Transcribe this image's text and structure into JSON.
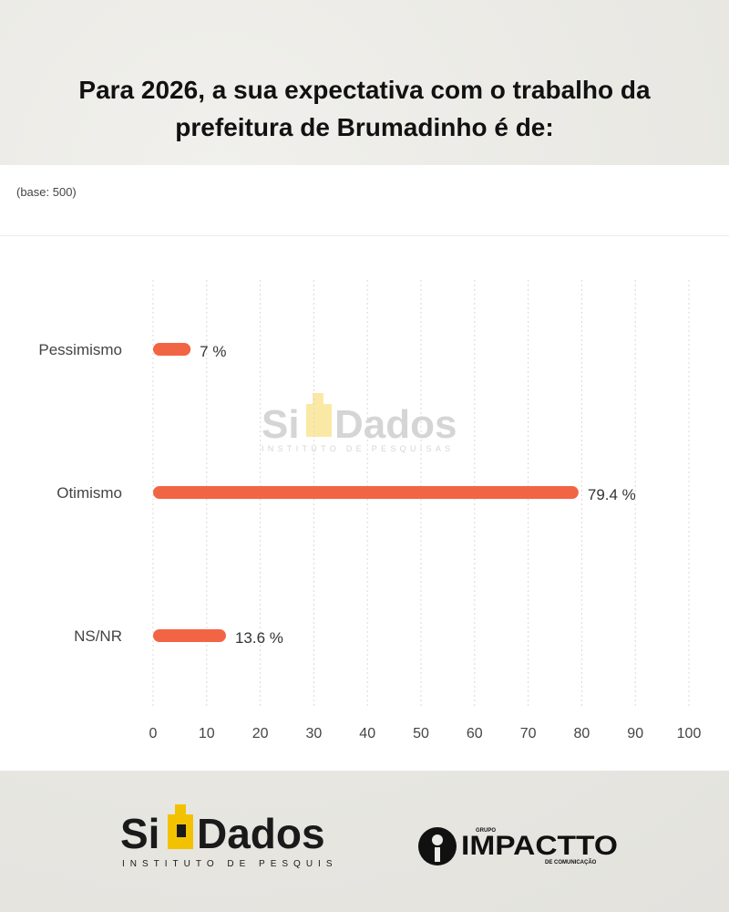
{
  "title_line1": "Para 2026, a sua expectativa com o trabalho da",
  "title_line2": "prefeitura de Brumadinho é de:",
  "base_note": "(base: 500)",
  "colors": {
    "bar": "#f26544",
    "grid": "#d8d8d8",
    "text": "#444444",
    "accent_logo": "#f2c200"
  },
  "watermark": {
    "brand_left": "Si",
    "brand_right": "Dados",
    "tagline": "INSTITUTO DE PESQUISAS"
  },
  "footer": {
    "left_brand_left": "Si",
    "left_brand_right": "Dados",
    "left_tagline": "INSTITUTO DE PESQUISAS",
    "right_group": "GRUPO",
    "right_brand": "IMPACTTO",
    "right_tagline": "DE COMUNICAÇÃO"
  },
  "chart_data": {
    "type": "bar",
    "orientation": "horizontal",
    "categories": [
      "Pessimismo",
      "Otimismo",
      "NS/NR"
    ],
    "values": [
      7,
      79.4,
      13.6
    ],
    "value_labels": [
      "7 %",
      "79.4 %",
      "13.6 %"
    ],
    "xlim": [
      0,
      100
    ],
    "xticks": [
      0,
      10,
      20,
      30,
      40,
      50,
      60,
      70,
      80,
      90,
      100
    ],
    "grid": "vertical dotted",
    "legend": "none"
  }
}
